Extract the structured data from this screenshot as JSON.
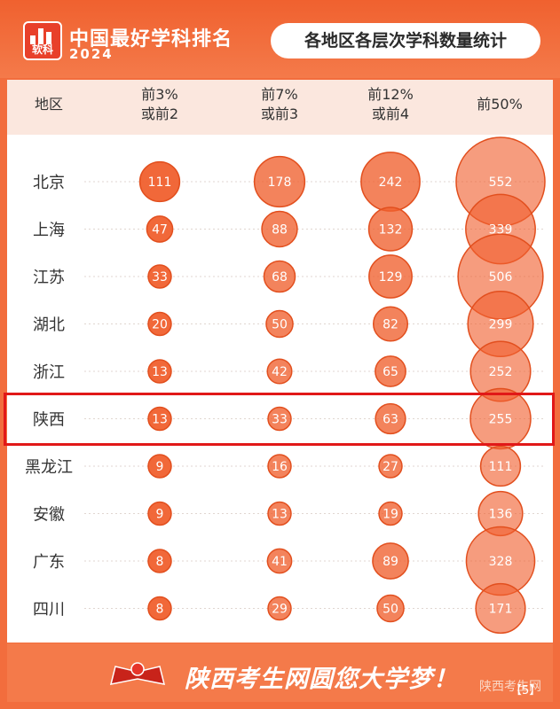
{
  "header": {
    "logo_text": "软科",
    "brand_title": "中国最好学科排名",
    "brand_year": "2024",
    "subtitle": "各地区各层次学科数量统计"
  },
  "columns": {
    "region": "地区",
    "tier1": [
      "前3%",
      "或前2"
    ],
    "tier2": [
      "前7%",
      "或前3"
    ],
    "tier3": [
      "前12%",
      "或前4"
    ],
    "tier4": [
      "前50%"
    ]
  },
  "chart_data": {
    "type": "bubble",
    "title": "各地区各层次学科数量统计",
    "xlabel": "",
    "ylabel": "地区",
    "categories": [
      "北京",
      "上海",
      "江苏",
      "湖北",
      "浙江",
      "陕西",
      "黑龙江",
      "安徽",
      "广东",
      "四川"
    ],
    "series": [
      {
        "name": "前3%或前2",
        "values": [
          111,
          47,
          33,
          20,
          13,
          13,
          9,
          9,
          8,
          8
        ]
      },
      {
        "name": "前7%或前3",
        "values": [
          178,
          88,
          68,
          50,
          42,
          33,
          16,
          13,
          41,
          29
        ]
      },
      {
        "name": "前12%或前4",
        "values": [
          242,
          132,
          129,
          82,
          65,
          63,
          27,
          19,
          89,
          50
        ]
      },
      {
        "name": "前50%",
        "values": [
          552,
          339,
          506,
          299,
          252,
          255,
          111,
          136,
          328,
          171
        ]
      }
    ],
    "highlight": "陕西",
    "colors": {
      "bubble": "#f0602e",
      "bubble_stroke": "#e24f1e",
      "highlight": "#e11818"
    }
  },
  "footer": {
    "slogan": "陕西考生网圆您大学梦！",
    "watermark": "陕西考生网",
    "page": "【5】"
  }
}
